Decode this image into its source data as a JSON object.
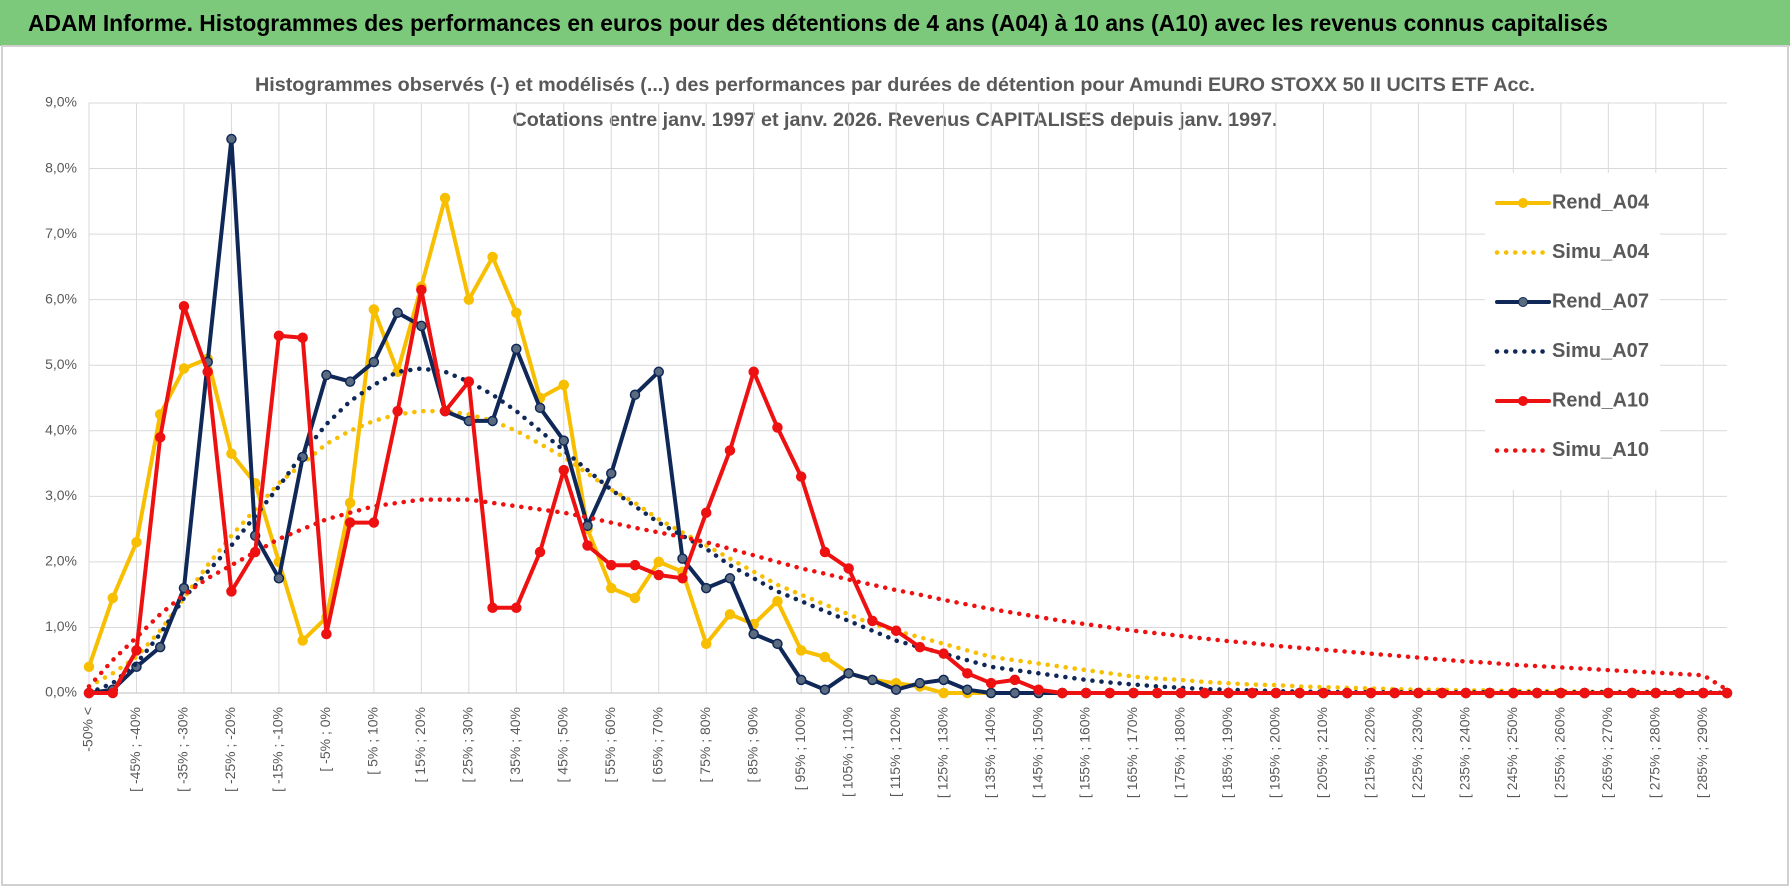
{
  "header": {
    "title": "ADAM Informe. Histogrammes des performances en euros pour des détentions de 4 ans (A04) à 10 ans (A10) avec les revenus connus capitalisés"
  },
  "chart_data": {
    "type": "line",
    "title": "Histogrammes observés (-) et modélisés (...) des performances par durées de détention pour Amundi EURO STOXX 50 II UCITS ETF Acc.",
    "subtitle": "Cotations entre janv. 1997 et janv. 2026. Revenus CAPITALISES depuis janv. 1997.",
    "categories": [
      "-50% <",
      null,
      "[ -45% ; -40%",
      null,
      "[ -35% ; -30%",
      null,
      "[ -25% ; -20%",
      null,
      "[ -15% ; -10%",
      null,
      "[ -5% ; 0%",
      null,
      "[ 5% ; 10%",
      null,
      "[ 15% ; 20%",
      null,
      "[ 25% ; 30%",
      null,
      "[ 35% ; 40%",
      null,
      "[ 45% ; 50%",
      null,
      "[ 55% ; 60%",
      null,
      "[ 65% ; 70%",
      null,
      "[ 75% ; 80%",
      null,
      "[ 85% ; 90%",
      null,
      "[ 95% ; 100%",
      null,
      "[ 105% ; 110%",
      null,
      "[ 115% ; 120%",
      null,
      "[ 125% ; 130%",
      null,
      "[ 135% ; 140%",
      null,
      "[ 145% ; 150%",
      null,
      "[ 155% ; 160%",
      null,
      "[ 165% ; 170%",
      null,
      "[ 175% ; 180%",
      null,
      "[ 185% ; 190%",
      null,
      "[ 195% ; 200%",
      null,
      "[ 205% ; 210%",
      null,
      "[ 215% ; 220%",
      null,
      "[ 225% ; 230%",
      null,
      "[ 235% ; 240%",
      null,
      "[ 245% ; 250%",
      null,
      "[ 255% ; 260%",
      null,
      "[ 265% ; 270%",
      null,
      "[ 275% ; 280%",
      null,
      "[ 285% ; 290%",
      null
    ],
    "ylim": [
      0,
      9
    ],
    "yticks": [
      {
        "value": 0,
        "label": "0,0%"
      },
      {
        "value": 1,
        "label": "1,0%"
      },
      {
        "value": 2,
        "label": "2,0%"
      },
      {
        "value": 3,
        "label": "3,0%"
      },
      {
        "value": 4,
        "label": "4,0%"
      },
      {
        "value": 5,
        "label": "5,0%"
      },
      {
        "value": 6,
        "label": "6,0%"
      },
      {
        "value": 7,
        "label": "7,0%"
      },
      {
        "value": 8,
        "label": "8,0%"
      },
      {
        "value": 9,
        "label": "9,0%"
      }
    ],
    "grid": true,
    "legend": "right",
    "series": [
      {
        "name": "Rend_A04",
        "color": "#f8be00",
        "style": "solid",
        "markers": true,
        "values": [
          0.4,
          1.45,
          2.3,
          4.25,
          4.95,
          5.1,
          3.65,
          3.2,
          2.0,
          0.8,
          1.15,
          2.9,
          5.85,
          4.9,
          6.2,
          7.55,
          6.0,
          6.65,
          5.8,
          4.5,
          4.7,
          2.5,
          1.6,
          1.45,
          2.0,
          1.85,
          0.75,
          1.2,
          1.05,
          1.4,
          0.65,
          0.55,
          0.3,
          0.2,
          0.15,
          0.1,
          0,
          0,
          0,
          0,
          0,
          0,
          0,
          0,
          0,
          0,
          0,
          0,
          0,
          0,
          0,
          0,
          0,
          0,
          0,
          0,
          0,
          0,
          0,
          0,
          0,
          0,
          0,
          0,
          0,
          0,
          0,
          0,
          0,
          0
        ]
      },
      {
        "name": "Simu_A04",
        "color": "#f8be00",
        "style": "dotted",
        "markers": false,
        "values": [
          0.1,
          0.3,
          0.55,
          0.95,
          1.45,
          1.95,
          2.4,
          2.8,
          3.2,
          3.5,
          3.8,
          4.0,
          4.15,
          4.25,
          4.3,
          4.3,
          4.25,
          4.15,
          4.0,
          3.8,
          3.6,
          3.35,
          3.1,
          2.9,
          2.65,
          2.45,
          2.25,
          2.05,
          1.85,
          1.65,
          1.5,
          1.35,
          1.2,
          1.05,
          0.95,
          0.85,
          0.75,
          0.65,
          0.55,
          0.5,
          0.45,
          0.4,
          0.35,
          0.3,
          0.25,
          0.22,
          0.2,
          0.17,
          0.15,
          0.13,
          0.12,
          0.1,
          0.09,
          0.08,
          0.07,
          0.06,
          0.05,
          0.05,
          0.04,
          0.04,
          0.03,
          0.03,
          0.03,
          0.02,
          0.02,
          0.02,
          0.02,
          0.01,
          0.01,
          0
        ]
      },
      {
        "name": "Rend_A07",
        "color": "#102858",
        "style": "solid",
        "markers": true,
        "values": [
          0,
          0.05,
          0.4,
          0.7,
          1.6,
          5.05,
          8.45,
          2.4,
          1.75,
          3.6,
          4.85,
          4.75,
          5.05,
          5.8,
          5.6,
          4.3,
          4.15,
          4.15,
          5.25,
          4.35,
          3.85,
          2.55,
          3.35,
          4.55,
          4.9,
          2.05,
          1.6,
          1.75,
          0.9,
          0.75,
          0.2,
          0.05,
          0.3,
          0.2,
          0.05,
          0.15,
          0.2,
          0.05,
          0,
          0,
          0,
          0,
          0,
          0,
          0,
          0,
          0,
          0,
          0,
          0,
          0,
          0,
          0,
          0,
          0,
          0,
          0,
          0,
          0,
          0,
          0,
          0,
          0,
          0,
          0,
          0,
          0,
          0,
          0,
          0
        ]
      },
      {
        "name": "Simu_A07",
        "color": "#102858",
        "style": "dotted",
        "markers": false,
        "values": [
          0,
          0.15,
          0.45,
          0.9,
          1.45,
          1.85,
          2.25,
          2.7,
          3.15,
          3.65,
          4.1,
          4.45,
          4.7,
          4.9,
          4.95,
          4.9,
          4.75,
          4.55,
          4.3,
          4.0,
          3.7,
          3.4,
          3.1,
          2.85,
          2.6,
          2.4,
          2.2,
          1.95,
          1.75,
          1.55,
          1.4,
          1.25,
          1.1,
          0.95,
          0.8,
          0.7,
          0.6,
          0.5,
          0.4,
          0.35,
          0.3,
          0.25,
          0.2,
          0.16,
          0.13,
          0.1,
          0.08,
          0.06,
          0.05,
          0.04,
          0.03,
          0.02,
          0.02,
          0.01,
          0.01,
          0.01,
          0.01,
          0.01,
          0.01,
          0.01,
          0.01,
          0.01,
          0.01,
          0.01,
          0.01,
          0.01,
          0.01,
          0.01,
          0.01,
          0
        ]
      },
      {
        "name": "Rend_A10",
        "color": "#ee1111",
        "style": "solid",
        "markers": true,
        "values": [
          0,
          0,
          0.65,
          3.9,
          5.9,
          4.9,
          1.55,
          2.15,
          5.45,
          5.42,
          0.9,
          2.6,
          2.6,
          4.3,
          6.15,
          4.3,
          4.75,
          1.3,
          1.3,
          2.15,
          3.4,
          2.25,
          1.95,
          1.95,
          1.8,
          1.75,
          2.75,
          3.7,
          4.9,
          4.05,
          3.3,
          2.15,
          1.9,
          1.1,
          0.95,
          0.7,
          0.6,
          0.3,
          0.15,
          0.2,
          0.05,
          0,
          0,
          0,
          0,
          0,
          0,
          0,
          0,
          0,
          0,
          0,
          0,
          0,
          0,
          0,
          0,
          0,
          0,
          0,
          0,
          0,
          0,
          0,
          0,
          0,
          0,
          0,
          0,
          0
        ]
      },
      {
        "name": "Simu_A10",
        "color": "#ee1111",
        "style": "dotted",
        "markers": false,
        "values": [
          0.1,
          0.5,
          0.85,
          1.2,
          1.5,
          1.75,
          1.95,
          2.15,
          2.35,
          2.5,
          2.65,
          2.75,
          2.85,
          2.9,
          2.95,
          2.95,
          2.95,
          2.9,
          2.85,
          2.8,
          2.75,
          2.68,
          2.6,
          2.52,
          2.45,
          2.38,
          2.3,
          2.2,
          2.1,
          2.0,
          1.9,
          1.82,
          1.73,
          1.65,
          1.57,
          1.5,
          1.42,
          1.35,
          1.28,
          1.22,
          1.16,
          1.1,
          1.05,
          1.0,
          0.95,
          0.91,
          0.87,
          0.83,
          0.79,
          0.76,
          0.72,
          0.69,
          0.66,
          0.63,
          0.6,
          0.57,
          0.54,
          0.51,
          0.48,
          0.46,
          0.43,
          0.41,
          0.39,
          0.37,
          0.35,
          0.33,
          0.31,
          0.29,
          0.27,
          0.05
        ]
      }
    ]
  }
}
